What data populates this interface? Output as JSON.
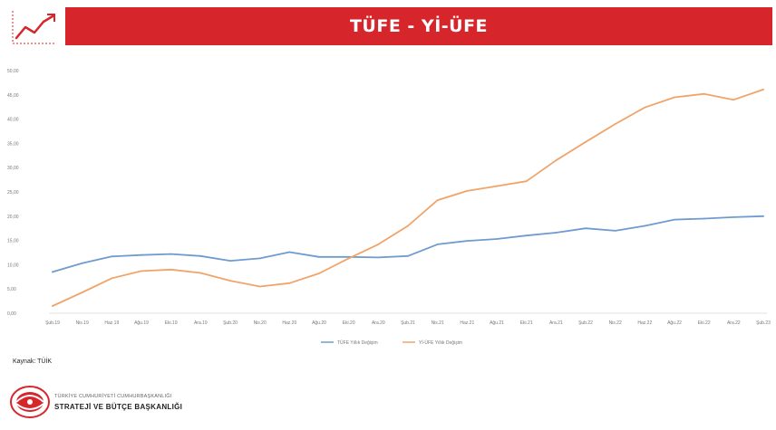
{
  "header": {
    "title": "TÜFE - Yİ-ÜFE",
    "icon": "trend-line-icon",
    "accent_color": "#d7262b"
  },
  "chart_data": {
    "type": "line",
    "categories": [
      "Şub.19",
      "Nis.19",
      "Haz.19",
      "Ağu.19",
      "Eki.19",
      "Ara.19",
      "Şub.20",
      "Nis.20",
      "Haz.20",
      "Ağu.20",
      "Eki.20",
      "Ara.20",
      "Şub.21",
      "Nis.21",
      "Haz.21",
      "Ağu.21",
      "Eki.21",
      "Ara.21",
      "Şub.22",
      "Nis.22",
      "Haz.22",
      "Ağu.22",
      "Eki.22",
      "Ara.22",
      "Şub.23"
    ],
    "series": [
      {
        "name": "TÜFE Yıllık Değişim",
        "color": "#6f9bd0",
        "values": [
          8.5,
          10.3,
          11.7,
          12.0,
          12.2,
          11.8,
          10.8,
          11.3,
          12.6,
          11.6,
          11.6,
          11.5,
          11.8,
          14.2,
          14.9,
          15.3,
          16.0,
          16.6,
          17.5,
          17.0,
          18.0,
          19.3,
          19.5,
          19.8,
          20.0
        ]
      },
      {
        "name": "Yİ-ÜFE Yıllık Değişim",
        "color": "#f0a46a",
        "values": [
          1.5,
          4.3,
          7.2,
          8.7,
          9.0,
          8.3,
          6.7,
          5.5,
          6.2,
          8.2,
          11.3,
          14.2,
          18.0,
          23.3,
          25.2,
          26.2,
          27.2,
          31.5,
          35.3,
          39.0,
          42.4,
          44.5,
          45.2,
          44.0,
          46.1
        ]
      }
    ],
    "y_ticks": [
      "0,00",
      "5,00",
      "10,00",
      "15,00",
      "20,00",
      "25,00",
      "30,00",
      "35,00",
      "40,00",
      "45,00",
      "50,00"
    ],
    "ylim": [
      0,
      50
    ],
    "grid": false,
    "legend_position": "bottom-center"
  },
  "footer": {
    "source": "Kaynak: TÜİK",
    "logo_line1": "TÜRKİYE CUMHURİYETİ CUMHURBAŞKANLIĞI",
    "logo_line2": "STRATEJİ VE BÜTÇE BAŞKANLIĞI",
    "logo_icon": "sbb-logo-icon"
  }
}
